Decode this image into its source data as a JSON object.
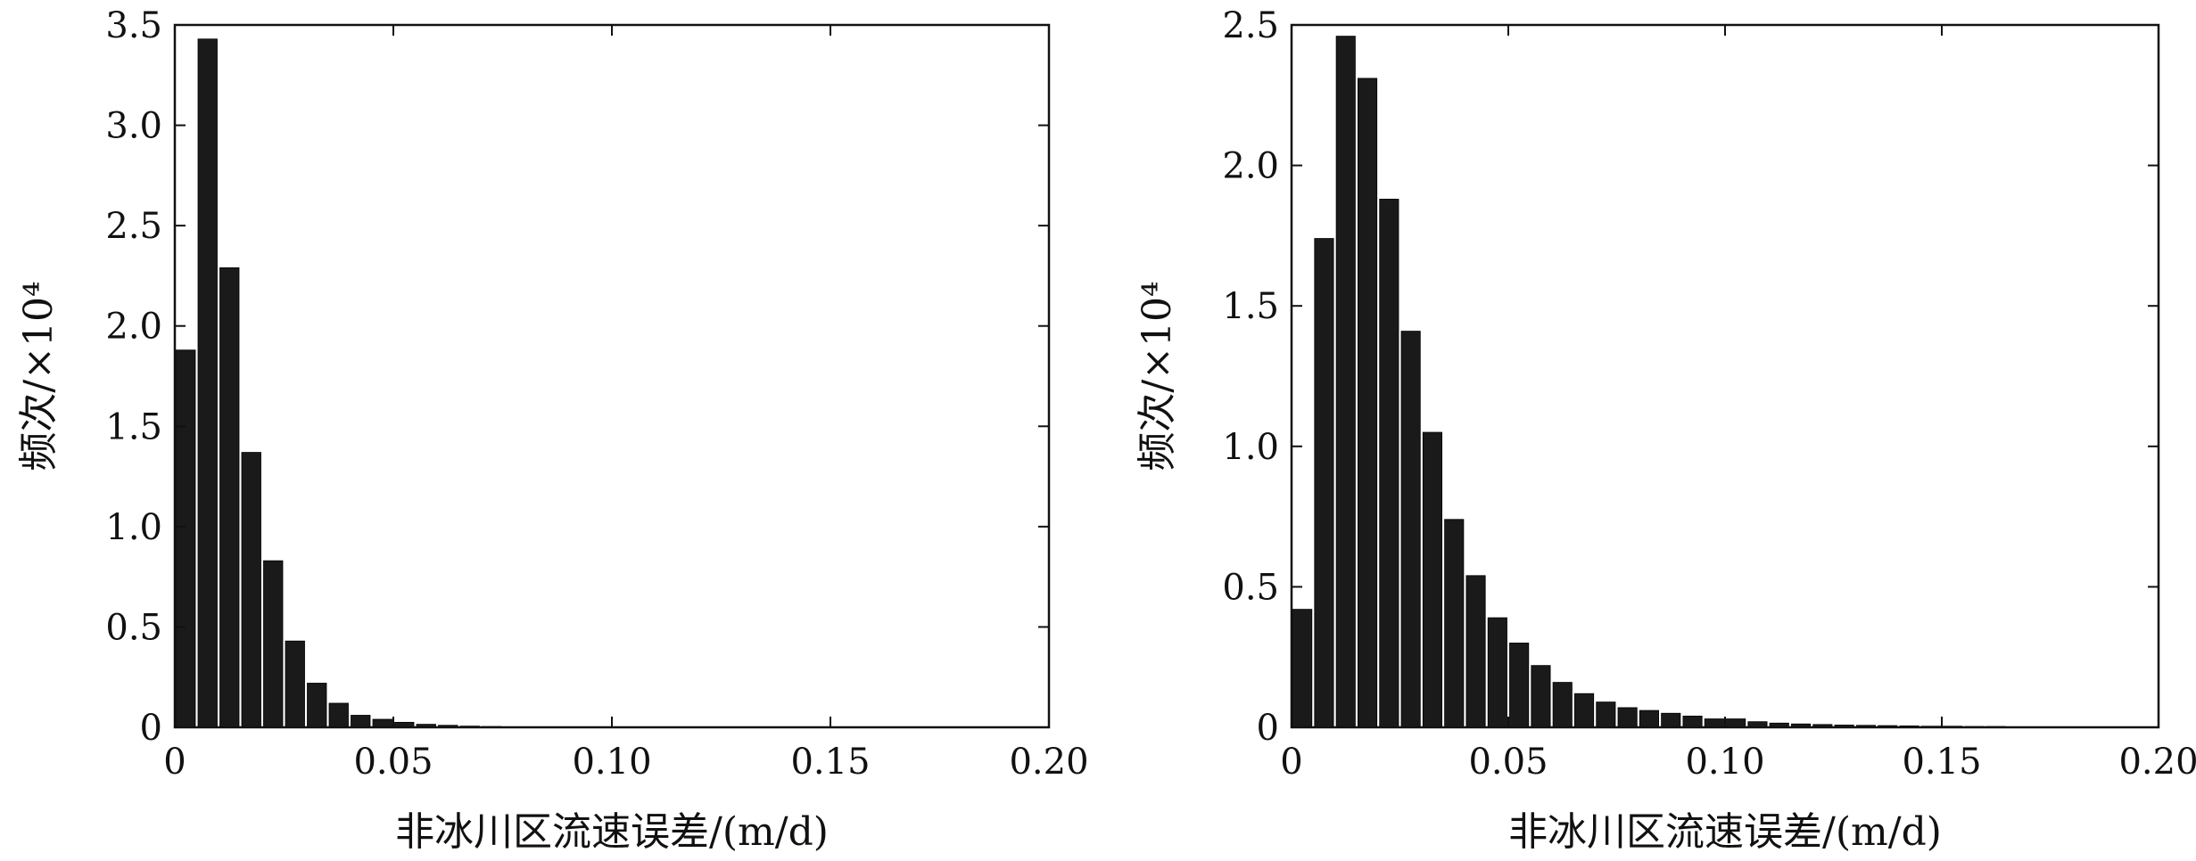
{
  "chart_data": [
    {
      "type": "bar",
      "xlabel": "非冰川区流速误差/(m/d)",
      "ylabel": "频次/×10⁴",
      "xlim": [
        0,
        0.2
      ],
      "ylim": [
        0,
        3.5
      ],
      "xticks": [
        "0",
        "0.05",
        "0.10",
        "0.15",
        "0.20"
      ],
      "yticks": [
        "0",
        "0.5",
        "1.0",
        "1.5",
        "2.0",
        "2.5",
        "3.0",
        "3.5"
      ],
      "bin_width": 0.005,
      "x": [
        0.0025,
        0.0075,
        0.0125,
        0.0175,
        0.0225,
        0.0275,
        0.0325,
        0.0375,
        0.0425,
        0.0475,
        0.0525,
        0.0575,
        0.0625,
        0.0675,
        0.0725
      ],
      "values": [
        1.88,
        3.43,
        2.29,
        1.37,
        0.83,
        0.43,
        0.22,
        0.12,
        0.06,
        0.04,
        0.025,
        0.015,
        0.01,
        0.006,
        0.004
      ],
      "grid": false
    },
    {
      "type": "bar",
      "xlabel": "非冰川区流速误差/(m/d)",
      "ylabel": "频次/×10⁴",
      "xlim": [
        0,
        0.2
      ],
      "ylim": [
        0,
        2.5
      ],
      "xticks": [
        "0",
        "0.05",
        "0.10",
        "0.15",
        "0.20"
      ],
      "yticks": [
        "0",
        "0.5",
        "1.0",
        "1.5",
        "2.0",
        "2.5"
      ],
      "bin_width": 0.005,
      "x": [
        0.0025,
        0.0075,
        0.0125,
        0.0175,
        0.0225,
        0.0275,
        0.0325,
        0.0375,
        0.0425,
        0.0475,
        0.0525,
        0.0575,
        0.0625,
        0.0675,
        0.0725,
        0.0775,
        0.0825,
        0.0875,
        0.0925,
        0.0975,
        0.1025,
        0.1075,
        0.1125,
        0.1175,
        0.1225,
        0.1275,
        0.1325,
        0.1375,
        0.1425,
        0.1475,
        0.1525,
        0.1575,
        0.1625,
        0.1675,
        0.1725,
        0.1775,
        0.1825,
        0.1875,
        0.1925,
        0.1975
      ],
      "values": [
        0.42,
        1.74,
        2.46,
        2.31,
        1.88,
        1.41,
        1.05,
        0.74,
        0.54,
        0.39,
        0.3,
        0.22,
        0.16,
        0.12,
        0.09,
        0.07,
        0.06,
        0.05,
        0.04,
        0.03,
        0.03,
        0.02,
        0.015,
        0.012,
        0.01,
        0.008,
        0.007,
        0.006,
        0.005,
        0.004,
        0.004,
        0.003,
        0.003,
        0.002,
        0.002,
        0.002,
        0.001,
        0.001,
        0.001,
        0.001
      ],
      "grid": false
    }
  ]
}
